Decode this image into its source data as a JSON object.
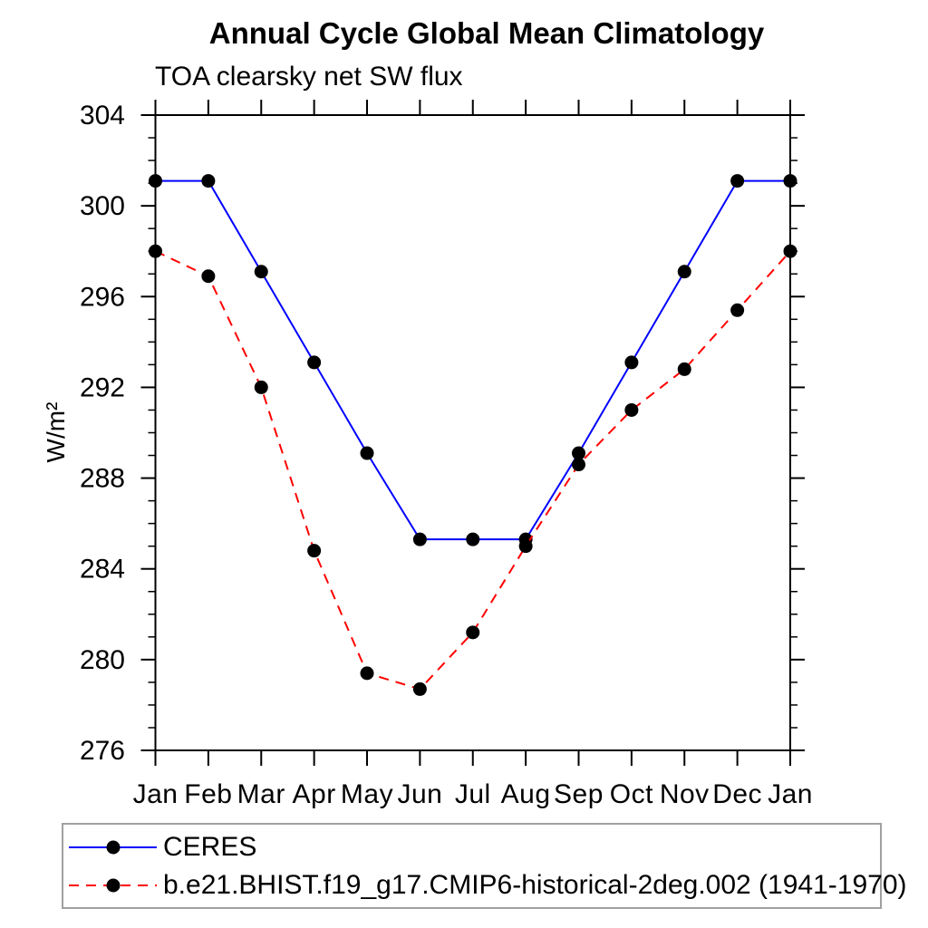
{
  "chart_data": {
    "type": "line",
    "title": "Annual Cycle Global Mean Climatology",
    "subtitle": "TOA clearsky net SW flux",
    "ylabel": "W/m²",
    "xlabel": "",
    "x_categories": [
      "Jan",
      "Feb",
      "Mar",
      "Apr",
      "May",
      "Jun",
      "Jul",
      "Aug",
      "Sep",
      "Oct",
      "Nov",
      "Dec",
      "Jan"
    ],
    "ylim": [
      276,
      304
    ],
    "ytick_step_major": 4,
    "ytick_step_minor": 1,
    "yticks_major": [
      276,
      280,
      284,
      288,
      292,
      296,
      300,
      304
    ],
    "grid": false,
    "legend_position": "bottom-left-box",
    "series": [
      {
        "name": "CERES",
        "color": "#0000ff",
        "line_style": "solid",
        "marker": "filled-circle",
        "marker_color": "#000000",
        "values": [
          301.1,
          301.1,
          297.1,
          293.1,
          289.1,
          285.3,
          285.3,
          285.3,
          289.1,
          293.1,
          297.1,
          301.1,
          301.1
        ]
      },
      {
        "name": "b.e21.BHIST.f19_g17.CMIP6-historical-2deg.002 (1941-1970)",
        "color": "#ff0000",
        "line_style": "dashed",
        "marker": "filled-circle",
        "marker_color": "#000000",
        "values": [
          298.0,
          296.9,
          292.0,
          284.8,
          279.4,
          278.7,
          281.2,
          285.0,
          288.6,
          291.0,
          292.8,
          295.4,
          298.0
        ]
      }
    ]
  },
  "axis_style": {
    "axis_color": "#000000",
    "tick_color": "#000000",
    "frame_line_width": 2
  }
}
